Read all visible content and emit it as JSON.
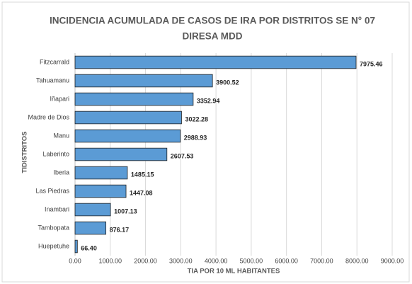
{
  "chart_data": {
    "type": "barh",
    "title": [
      "INCIDENCIA ACUMULADA DE CASOS DE IRA POR DISTRITOS SE N° 07",
      "DIRESA MDD"
    ],
    "xlabel": "TIA POR 10 ML HABITANTES",
    "ylabel": "TIDISTRITOS",
    "categories": [
      "Fitzcarrald",
      "Tahuamanu",
      "Iñapari",
      "Madre de Dios",
      "Manu",
      "Laberinto",
      "Iberia",
      "Las Piedras",
      "Inambari",
      "Tambopata",
      "Huepetuhe"
    ],
    "values": [
      7975.46,
      3900.52,
      3352.94,
      3022.28,
      2988.93,
      2607.53,
      1485.15,
      1447.08,
      1007.13,
      876.17,
      66.4
    ],
    "value_labels": [
      "7975.46",
      "3900.52",
      "3352.94",
      "3022.28",
      "2988.93",
      "2607.53",
      "1485.15",
      "1447.08",
      "1007.13",
      "876.17",
      "66.40"
    ],
    "color": "#5b9bd5",
    "xlim": [
      0,
      9000
    ],
    "xticks": [
      {
        "value": 0,
        "label": "0.00"
      },
      {
        "value": 1000,
        "label": "1000.00"
      },
      {
        "value": 2000,
        "label": "2000.00"
      },
      {
        "value": 3000,
        "label": "3000.00"
      },
      {
        "value": 4000,
        "label": "4000.00"
      },
      {
        "value": 5000,
        "label": "5000.00"
      },
      {
        "value": 6000,
        "label": "6000.00"
      },
      {
        "value": 7000,
        "label": "7000.00"
      },
      {
        "value": 8000,
        "label": "8000.00"
      },
      {
        "value": 9000,
        "label": "9000.00"
      }
    ],
    "grid": true
  }
}
